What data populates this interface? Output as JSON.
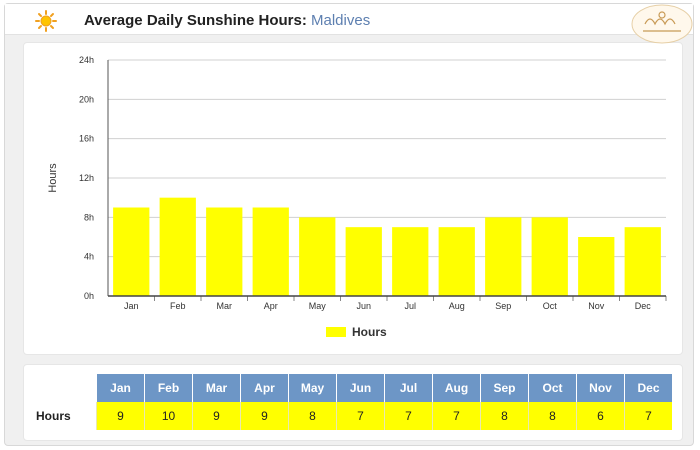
{
  "header": {
    "title": "Average Daily Sunshine Hours:",
    "location": "Maldives"
  },
  "colors": {
    "bar": "#ffff00",
    "header_cell": "#6d96c6",
    "location_text": "#5d7fb0"
  },
  "icons": {
    "left": "sun-icon",
    "right": "site-logo"
  },
  "chart_data": {
    "type": "bar",
    "categories": [
      "Jan",
      "Feb",
      "Mar",
      "Apr",
      "May",
      "Jun",
      "Jul",
      "Aug",
      "Sep",
      "Oct",
      "Nov",
      "Dec"
    ],
    "series": [
      {
        "name": "Hours",
        "values": [
          9,
          10,
          9,
          9,
          8,
          7,
          7,
          7,
          8,
          8,
          6,
          7
        ]
      }
    ],
    "ylabel": "Hours",
    "ylim": [
      0,
      24
    ],
    "yticks": [
      0,
      4,
      8,
      12,
      16,
      20,
      24
    ],
    "ytick_labels": [
      "0h",
      "4h",
      "8h",
      "12h",
      "16h",
      "20h",
      "24h"
    ],
    "grid": true,
    "legend": "bottom-center"
  },
  "table": {
    "row_label": "Hours",
    "months": [
      "Jan",
      "Feb",
      "Mar",
      "Apr",
      "May",
      "Jun",
      "Jul",
      "Aug",
      "Sep",
      "Oct",
      "Nov",
      "Dec"
    ],
    "values": [
      "9",
      "10",
      "9",
      "9",
      "8",
      "7",
      "7",
      "7",
      "8",
      "8",
      "6",
      "7"
    ]
  }
}
